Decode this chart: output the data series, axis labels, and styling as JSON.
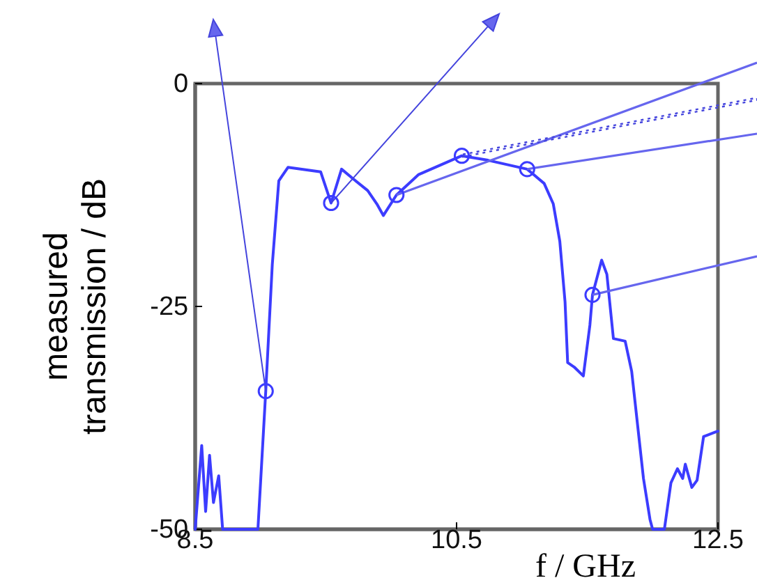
{
  "chart_data": {
    "type": "line",
    "xlabel": "f / GHz",
    "ylabel": "measured transmission / dB",
    "xlim": [
      8.5,
      12.5
    ],
    "ylim": [
      -50,
      0
    ],
    "xticks": [
      8.5,
      10.5,
      12.5
    ],
    "yticks": [
      0,
      -25,
      -50
    ],
    "grid": false,
    "series": [
      {
        "color": "#3c3cff",
        "marker": "none",
        "x": [
          8.5,
          8.55,
          8.58,
          8.61,
          8.64,
          8.68,
          8.71,
          8.98,
          9.04,
          9.09,
          9.14,
          9.21,
          9.46,
          9.54,
          9.62,
          9.71,
          9.82,
          9.89,
          9.94,
          10.04,
          10.21,
          10.54,
          10.74,
          11.04,
          11.17,
          11.24,
          11.29,
          11.33,
          11.35,
          11.4,
          11.47,
          11.52,
          11.54,
          11.61,
          11.65,
          11.7,
          11.79,
          11.84,
          11.93,
          11.98,
          12.0,
          12.09,
          12.14,
          12.19,
          12.23,
          12.25,
          12.3,
          12.34,
          12.39,
          12.48,
          12.5
        ],
        "values": [
          -50,
          -40.6,
          -48,
          -41.7,
          -47,
          -44,
          -50,
          -50,
          -34.5,
          -20.3,
          -10.9,
          -9.4,
          -9.9,
          -13.4,
          -9.6,
          -10.7,
          -12,
          -13.5,
          -14.8,
          -12.5,
          -10.2,
          -8.1,
          -8.6,
          -9.6,
          -11.2,
          -13.5,
          -17.7,
          -24.5,
          -31.3,
          -31.8,
          -32.8,
          -27.1,
          -23.7,
          -19.8,
          -21.4,
          -28.6,
          -28.9,
          -32.3,
          -44.3,
          -48.9,
          -50,
          -50,
          -44.8,
          -43.2,
          -44.3,
          -42.7,
          -45.3,
          -44.5,
          -39.6,
          -39.1,
          -39
        ]
      },
      {
        "type": "scatter",
        "color": "#3c3cff",
        "marker": "circle",
        "x": [
          9.04,
          9.54,
          10.04,
          10.54,
          11.04,
          11.54
        ],
        "values": [
          -34.5,
          -13.4,
          -12.5,
          -8.1,
          -9.6,
          -23.7
        ]
      }
    ]
  }
}
